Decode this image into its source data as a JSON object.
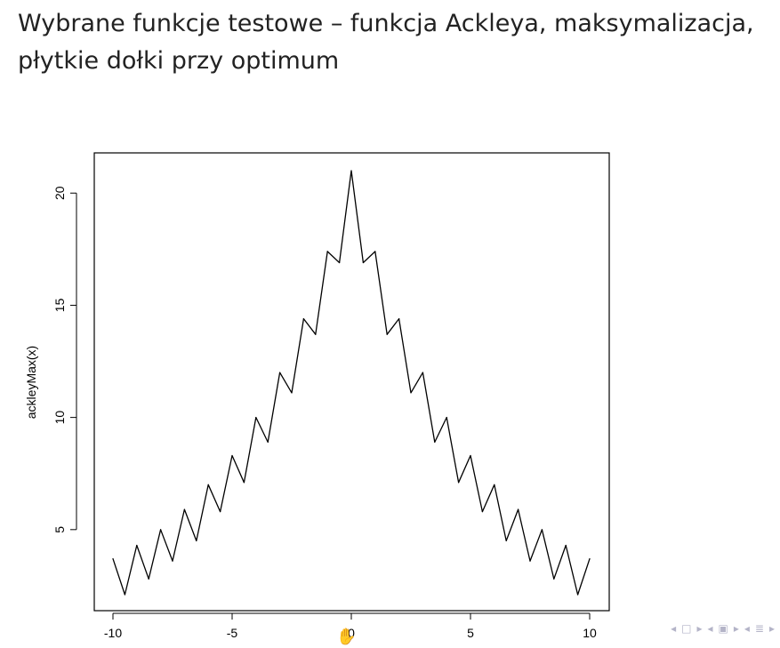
{
  "slide": {
    "title": "Wybrane funkcje testowe – funkcja Ackleya, maksymalizacja,\npłytkie dołki przy optimum"
  },
  "chart_data": {
    "type": "line",
    "title": "",
    "xlabel": "",
    "ylabel": "ackleyMax(x)",
    "xlim": [
      -10,
      10
    ],
    "ylim": [
      2.1,
      21.0
    ],
    "grid": false,
    "x_ticks": [
      -10,
      -5,
      0,
      5,
      10
    ],
    "y_ticks": [
      5,
      10,
      15,
      20
    ],
    "x_tick_labels": [
      "-10",
      "-5",
      "0",
      "5",
      "10"
    ],
    "y_tick_labels": [
      "5",
      "10",
      "15",
      "20"
    ],
    "series": [
      {
        "color": "#000000",
        "x": [
          -10,
          -9.5,
          -9,
          -8.5,
          -8,
          -7.5,
          -7,
          -6.5,
          -6,
          -5.5,
          -5,
          -4.5,
          -4,
          -3.5,
          -3,
          -2.5,
          -2,
          -1.5,
          -1,
          -0.5,
          0,
          0.5,
          1,
          1.5,
          2,
          2.5,
          3,
          3.5,
          4,
          4.5,
          5,
          5.5,
          6,
          6.5,
          7,
          7.5,
          8,
          8.5,
          9,
          9.5,
          10
        ],
        "y": [
          3.7,
          2.1,
          4.3,
          2.8,
          5.0,
          3.6,
          5.9,
          4.5,
          7.0,
          5.8,
          8.3,
          7.1,
          10.0,
          8.9,
          12.0,
          11.1,
          14.4,
          13.7,
          17.4,
          16.9,
          21.0,
          16.9,
          17.4,
          13.7,
          14.4,
          11.1,
          12.0,
          8.9,
          10.0,
          7.1,
          8.3,
          5.8,
          7.0,
          4.5,
          5.9,
          3.6,
          5.0,
          2.8,
          4.3,
          2.1,
          3.7
        ]
      }
    ]
  },
  "nav": {
    "icons": [
      "nav-left-icon",
      "frame-icon",
      "nav-right-icon",
      "section-left-icon",
      "section-icon",
      "section-right-icon",
      "subsection-left-icon",
      "subsection-icon",
      "subsection-right-icon"
    ]
  }
}
